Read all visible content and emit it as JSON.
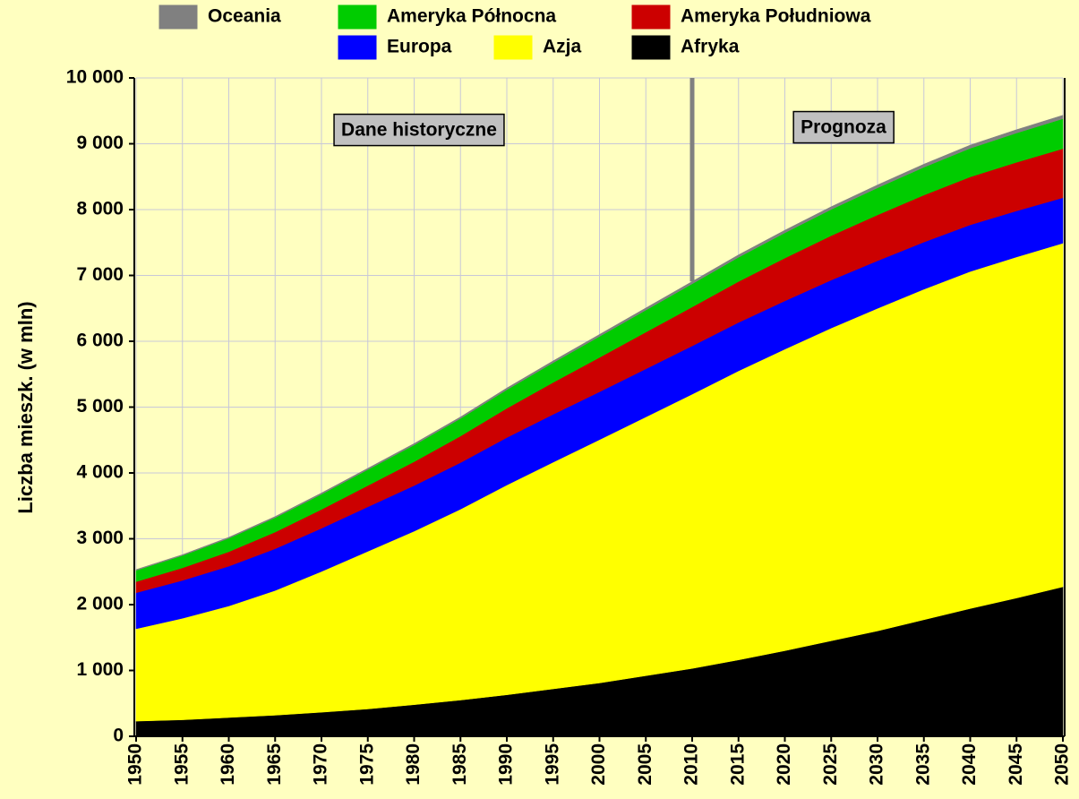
{
  "chart_data": {
    "type": "stacked_area",
    "ylabel": "Liczba mieszk. (w mln)",
    "x": [
      1950,
      1955,
      1960,
      1965,
      1970,
      1975,
      1980,
      1985,
      1990,
      1995,
      2000,
      2005,
      2010,
      2015,
      2020,
      2025,
      2030,
      2035,
      2040,
      2045,
      2050
    ],
    "xlim": [
      1950,
      2050
    ],
    "xticks": [
      1950,
      1955,
      1960,
      1965,
      1970,
      1975,
      1980,
      1985,
      1990,
      1995,
      2000,
      2005,
      2010,
      2015,
      2020,
      2025,
      2030,
      2035,
      2040,
      2045,
      2050
    ],
    "ylim": [
      0,
      10000
    ],
    "yticks": [
      0,
      {
        "value": 1000,
        "label": "1 000"
      },
      {
        "value": 2000,
        "label": "2 000"
      },
      {
        "value": 3000,
        "label": "3 000"
      },
      {
        "value": 4000,
        "label": "4 000"
      },
      {
        "value": 5000,
        "label": "5 000"
      },
      {
        "value": 6000,
        "label": "6 000"
      },
      {
        "value": 7000,
        "label": "7 000"
      },
      {
        "value": 8000,
        "label": "8 000"
      },
      {
        "value": 9000,
        "label": "9 000"
      },
      {
        "value": 10000,
        "label": "10 000"
      }
    ],
    "grid": true,
    "divider_x": 2010,
    "annotations": [
      "Dane historyczne",
      "Prognoza"
    ],
    "series": [
      {
        "name": "Afryka",
        "color": "#000000",
        "values": [
          230,
          250,
          285,
          320,
          365,
          415,
          480,
          550,
          630,
          720,
          810,
          920,
          1030,
          1160,
          1300,
          1450,
          1600,
          1770,
          1940,
          2100,
          2270
        ]
      },
      {
        "name": "Azja",
        "color": "#ffff00",
        "values": [
          1403,
          1542,
          1694,
          1894,
          2138,
          2394,
          2635,
          2899,
          3186,
          3443,
          3695,
          3930,
          4166,
          4390,
          4580,
          4750,
          4900,
          5020,
          5120,
          5180,
          5220
        ]
      },
      {
        "name": "Europa",
        "color": "#0000ff",
        "values": [
          547,
          575,
          604,
          634,
          656,
          676,
          693,
          707,
          721,
          727,
          727,
          730,
          733,
          735,
          733,
          729,
          723,
          716,
          708,
          700,
          690
        ]
      },
      {
        "name": "Ameryka Południowa",
        "color": "#cc0000",
        "values": [
          168,
          191,
          220,
          253,
          286,
          323,
          362,
          403,
          444,
          484,
          522,
          558,
          591,
          622,
          650,
          675,
          696,
          714,
          728,
          738,
          745
        ]
      },
      {
        "name": "Ameryka Północna",
        "color": "#00cc00",
        "values": [
          172,
          187,
          204,
          219,
          231,
          242,
          254,
          267,
          282,
          300,
          319,
          335,
          352,
          368,
          384,
          398,
          411,
          423,
          435,
          445,
          455
        ]
      },
      {
        "name": "Oceania",
        "color": "#808080",
        "values": [
          13,
          14,
          16,
          18,
          20,
          21,
          23,
          25,
          27,
          29,
          31,
          33,
          36,
          38,
          40,
          42,
          45,
          47,
          49,
          51,
          53
        ]
      }
    ]
  }
}
